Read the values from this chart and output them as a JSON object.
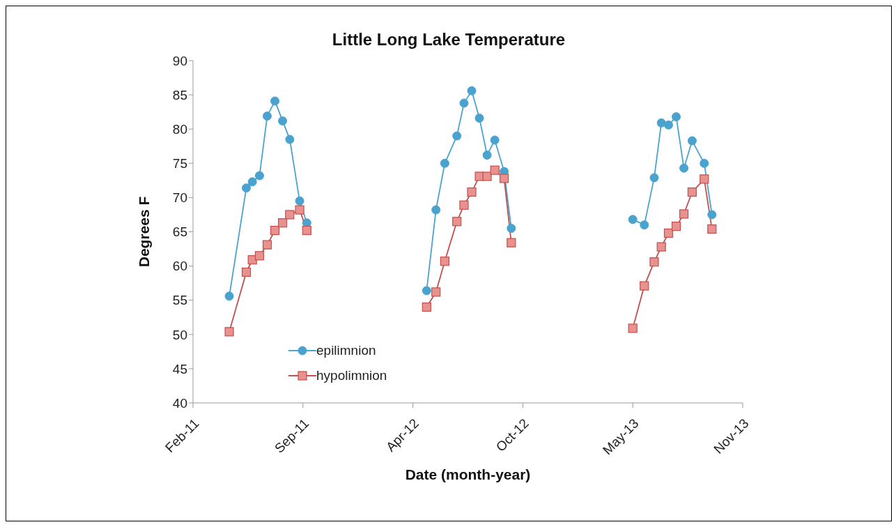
{
  "chart_data": {
    "type": "line",
    "title": "Little Long Lake Temperature",
    "xlabel": "Date (month-year)",
    "ylabel": "Degrees F",
    "x": [
      "2011-05-05",
      "2011-06-05",
      "2011-06-16",
      "2011-06-29",
      "2011-07-13",
      "2011-07-27",
      "2011-08-10",
      "2011-08-23",
      "2011-09-10",
      "2011-09-23",
      "2012-01-01",
      "2012-04-28",
      "2012-05-15",
      "2012-05-31",
      "2012-06-22",
      "2012-07-05",
      "2012-07-19",
      "2012-08-02",
      "2012-08-16",
      "2012-08-30",
      "2012-09-16",
      "2012-09-29",
      "2013-01-01",
      "2013-05-08",
      "2013-05-29",
      "2013-06-16",
      "2013-06-29",
      "2013-07-12",
      "2013-07-26",
      "2013-08-09",
      "2013-08-24",
      "2013-09-15",
      "2013-09-29"
    ],
    "series": [
      {
        "name": "epilimnion",
        "color": "#4aa3cf",
        "marker": "circle",
        "values": [
          55.6,
          71.4,
          72.3,
          73.2,
          81.9,
          84.1,
          81.2,
          78.5,
          69.5,
          66.3,
          null,
          56.4,
          68.2,
          75.0,
          79.0,
          83.8,
          85.6,
          81.6,
          76.2,
          78.4,
          73.8,
          65.5,
          null,
          66.8,
          66.0,
          72.9,
          80.9,
          80.6,
          81.8,
          74.3,
          78.3,
          75.0,
          67.5
        ]
      },
      {
        "name": "hypolimnion",
        "color": "#c0504d",
        "marker": "square",
        "values": [
          50.4,
          59.1,
          60.9,
          61.5,
          63.1,
          65.2,
          66.3,
          67.5,
          68.2,
          65.2,
          null,
          54.0,
          56.2,
          60.7,
          66.5,
          68.9,
          70.8,
          73.1,
          73.1,
          74.0,
          72.8,
          63.4,
          null,
          50.9,
          57.1,
          60.6,
          62.8,
          64.8,
          65.8,
          67.6,
          70.8,
          72.7,
          65.4
        ]
      }
    ],
    "xlim": [
      "2011-02-28",
      "2013-11-24"
    ],
    "xticks": [
      {
        "value": "2011-02-28",
        "label": "Feb-11"
      },
      {
        "value": "2011-09-16",
        "label": "Sep-11"
      },
      {
        "value": "2012-04-03",
        "label": "Apr-12"
      },
      {
        "value": "2012-10-20",
        "label": "Oct-12"
      },
      {
        "value": "2013-05-08",
        "label": "May-13"
      },
      {
        "value": "2013-11-24",
        "label": "Nov-13"
      }
    ],
    "ylim": [
      40,
      90
    ],
    "yticks": [
      40,
      45,
      50,
      55,
      60,
      65,
      70,
      75,
      80,
      85,
      90
    ],
    "grid": false,
    "legend": "bottom left",
    "line_style": "solid"
  }
}
